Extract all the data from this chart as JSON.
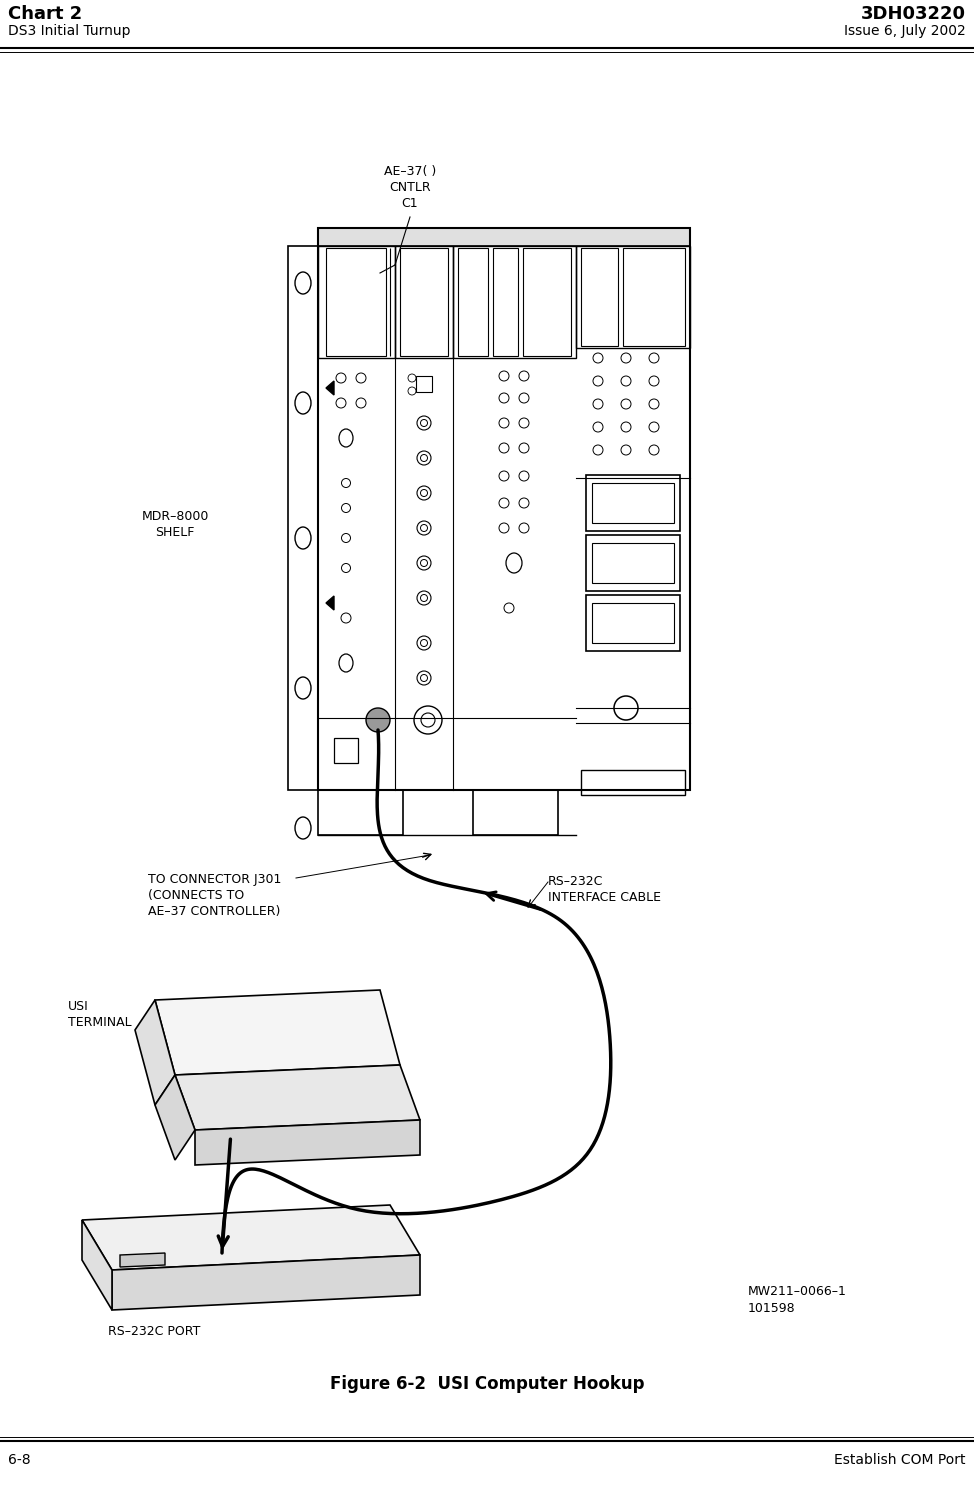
{
  "title_left": "Chart 2",
  "subtitle_left": "DS3 Initial Turnup",
  "title_right": "3DH03220",
  "subtitle_right": "Issue 6, July 2002",
  "footer_left": "6-8",
  "footer_right": "Establish COM Port",
  "figure_caption": "Figure 6-2  USI Computer Hookup",
  "figure_ref": "MW211–0066–1\n101598",
  "label_ae37": "AE–37( )\nCNTLR\nC1",
  "label_mdr": "MDR–8000\nSHELF",
  "label_connector": "TO CONNECTOR J301\n(CONNECTS TO\nAE–37 CONTROLLER)",
  "label_rs232c_cable": "RS–232C\nINTERFACE CABLE",
  "label_usi": "USI\nTERMINAL",
  "label_rs232c_port": "RS–232C PORT",
  "bg_color": "#ffffff",
  "line_color": "#000000",
  "text_color": "#000000"
}
